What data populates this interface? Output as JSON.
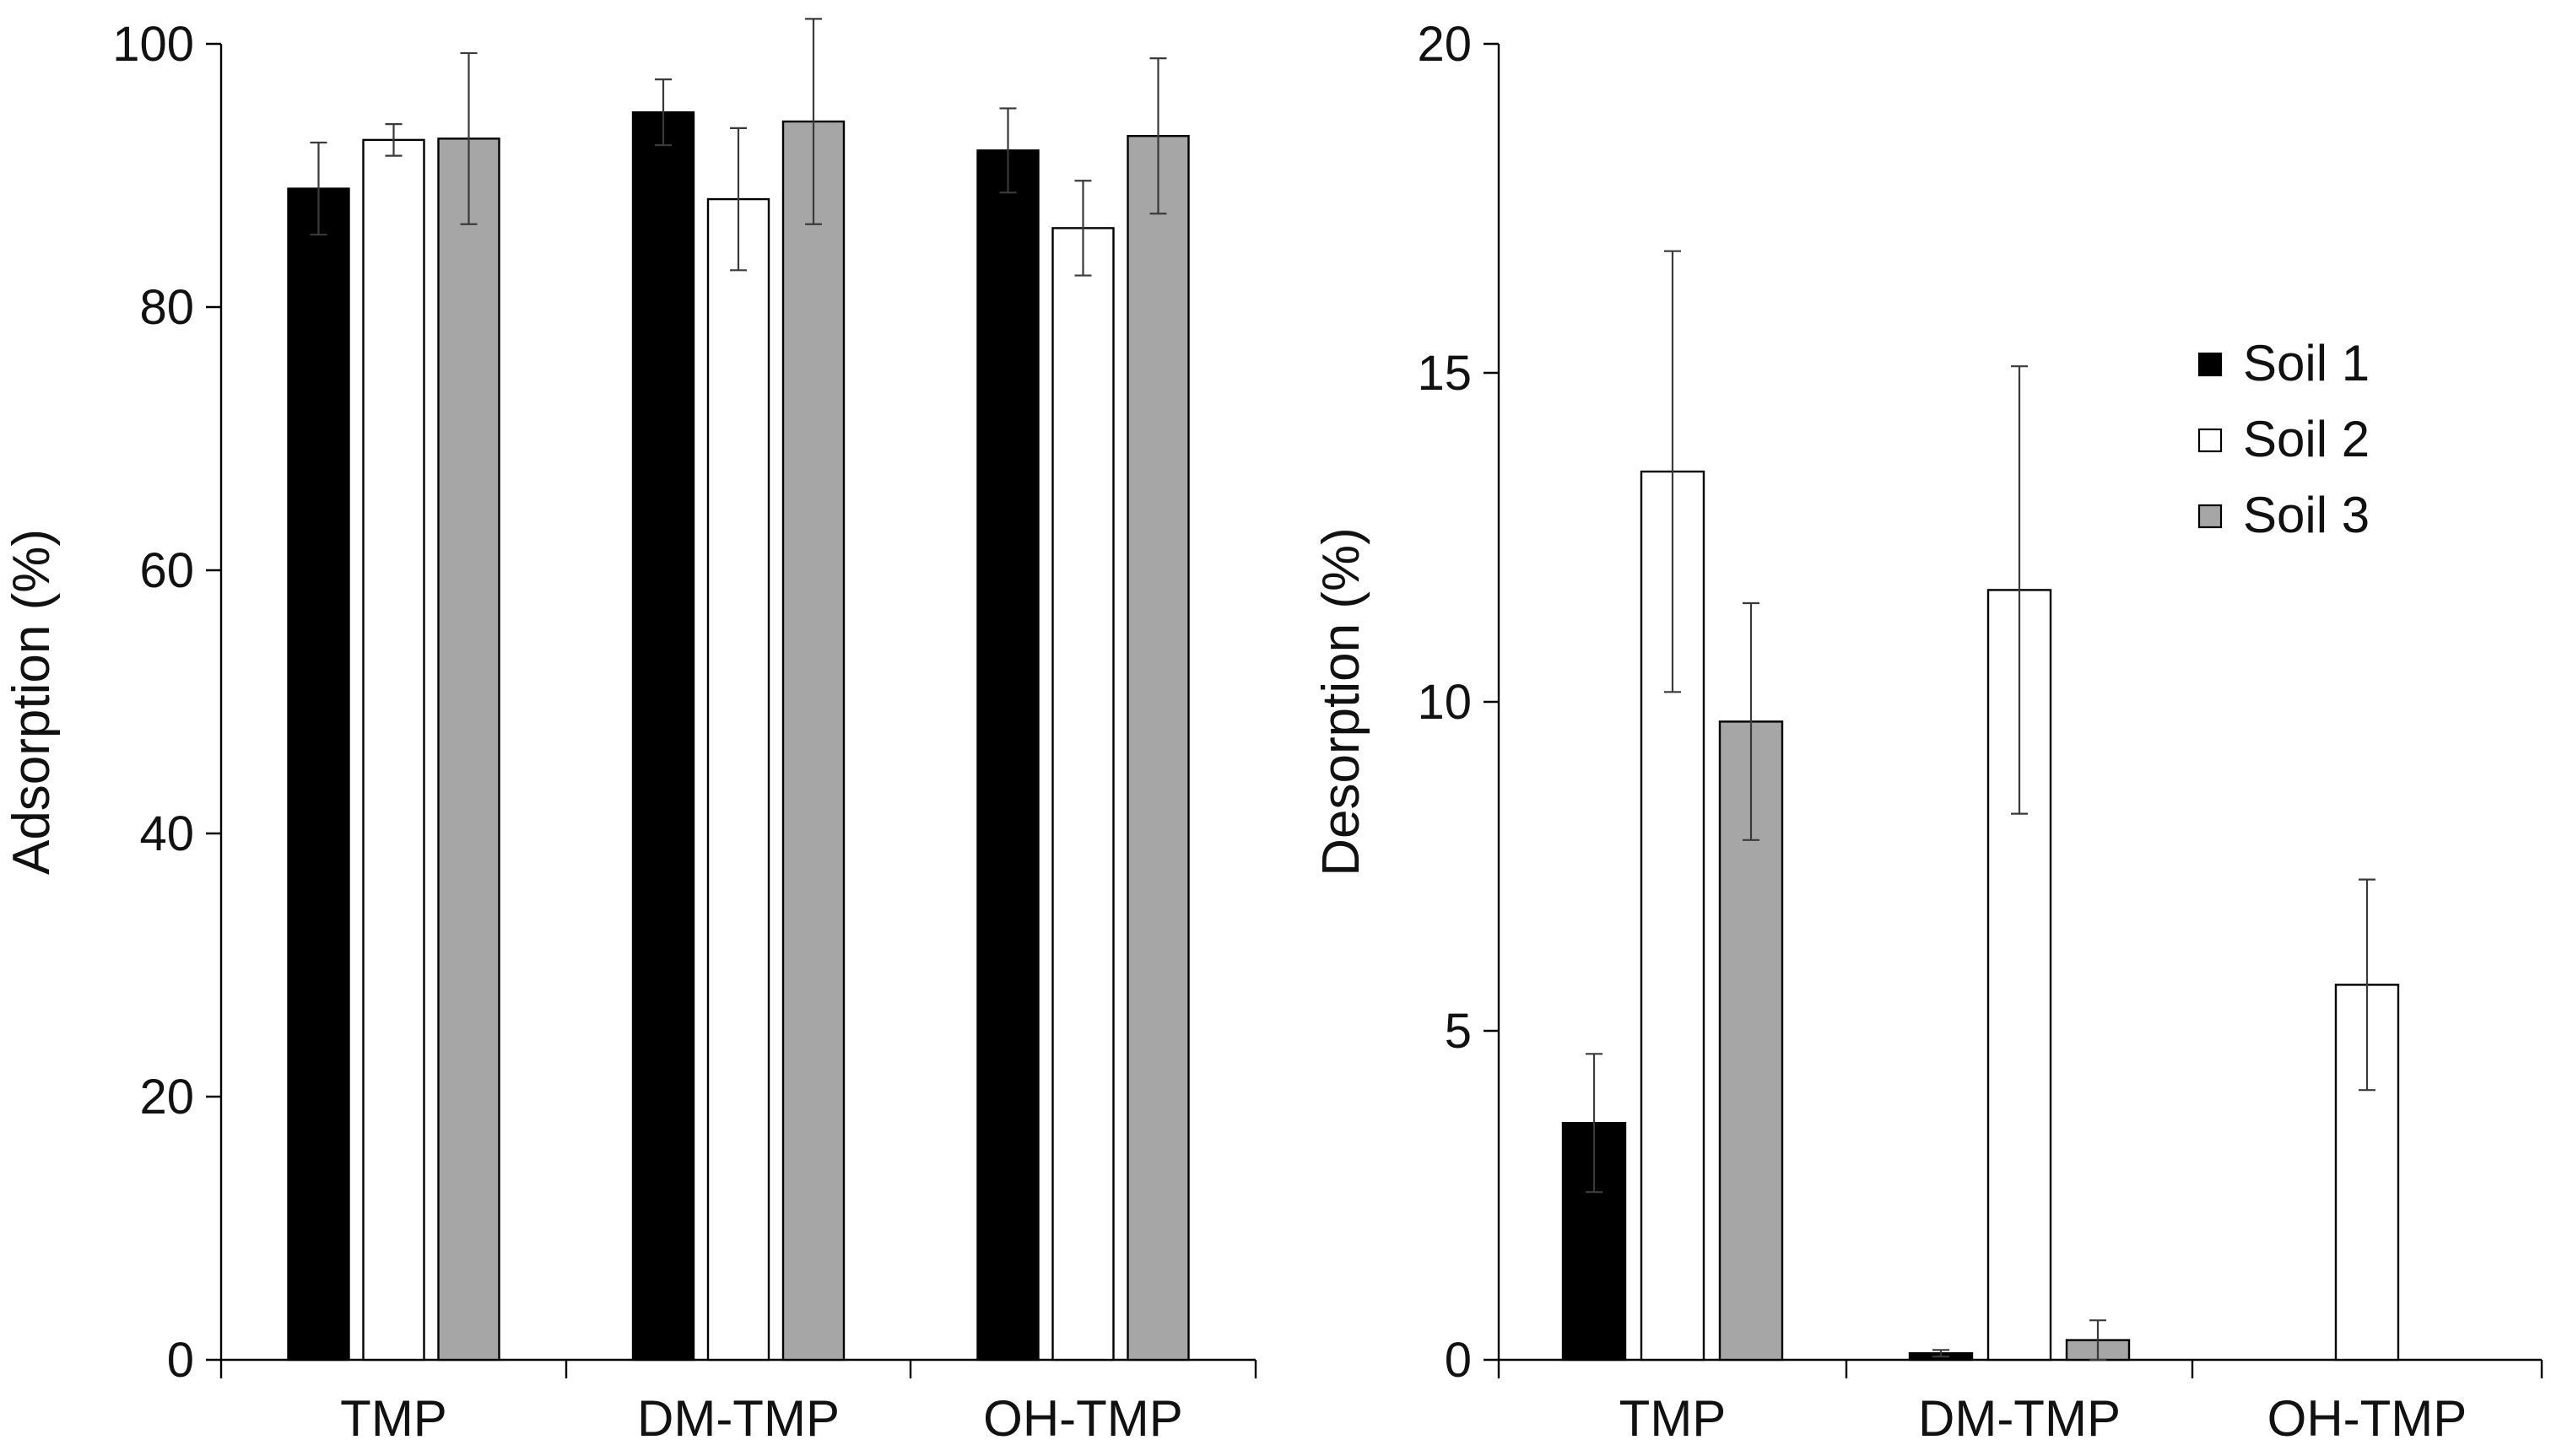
{
  "chart_data": [
    {
      "type": "bar",
      "title": "",
      "xlabel": "",
      "ylabel": "Adsorption (%)",
      "ylim": [
        0,
        100
      ],
      "yticks": [
        0,
        20,
        40,
        60,
        80,
        100
      ],
      "categories": [
        "TMP",
        "DM-TMP",
        "OH-TMP"
      ],
      "series": [
        {
          "name": "Soil 1",
          "color": "#000000",
          "values": [
            89.0,
            94.8,
            91.9
          ],
          "errors": [
            3.5,
            2.5,
            3.2
          ]
        },
        {
          "name": "Soil 2",
          "color": "#ffffff",
          "values": [
            92.7,
            88.2,
            86.0
          ],
          "errors": [
            1.2,
            5.4,
            3.6
          ]
        },
        {
          "name": "Soil 3",
          "color": "#a6a6a6",
          "values": [
            92.8,
            94.1,
            93.0
          ],
          "errors": [
            6.5,
            7.8,
            5.9
          ]
        }
      ],
      "legend": "none"
    },
    {
      "type": "bar",
      "title": "",
      "xlabel": "",
      "ylabel": "Desorption (%)",
      "ylim": [
        0,
        20
      ],
      "yticks": [
        0,
        5,
        10,
        15,
        20
      ],
      "categories": [
        "TMP",
        "DM-TMP",
        "OH-TMP"
      ],
      "series": [
        {
          "name": "Soil 1",
          "color": "#000000",
          "values": [
            3.6,
            0.1,
            0.0
          ],
          "errors": [
            1.05,
            0.05,
            0.0
          ]
        },
        {
          "name": "Soil 2",
          "color": "#ffffff",
          "values": [
            13.5,
            11.7,
            5.7
          ],
          "errors": [
            3.35,
            3.4,
            1.6
          ]
        },
        {
          "name": "Soil 3",
          "color": "#a6a6a6",
          "values": [
            9.7,
            0.3,
            0.0
          ],
          "errors": [
            1.8,
            0.3,
            0.0
          ]
        }
      ],
      "legend": "top-right"
    }
  ]
}
